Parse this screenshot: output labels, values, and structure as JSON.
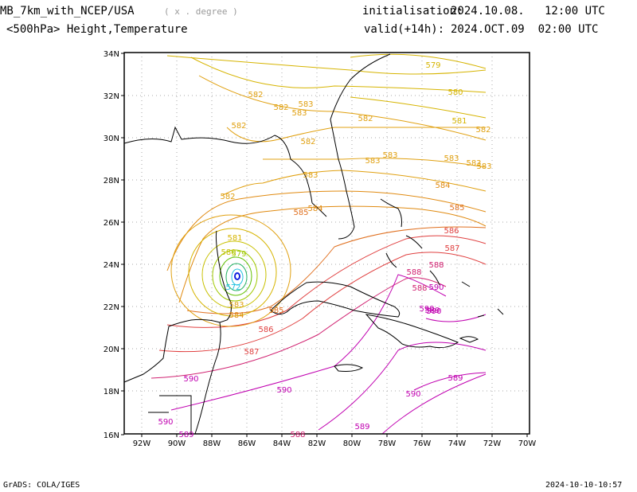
{
  "header": {
    "model": "MB_7km_with_NCEP/USA",
    "units": "( x . degree )",
    "field": "<500hPa> Height,Temperature",
    "init_label": "initialisation:",
    "init_value": "2024.10.08.   12:00 UTC",
    "valid_label": "valid(+14h):",
    "valid_value": "2024.OCT.09  02:00 UTC"
  },
  "footer": {
    "credit": "GrADS: COLA/IGES",
    "timestamp": "2024-10-10-10:57"
  },
  "map": {
    "lon_ticks": [
      "92W",
      "90W",
      "88W",
      "86W",
      "84W",
      "82W",
      "80W",
      "78W",
      "76W",
      "74W",
      "72W",
      "70W"
    ],
    "lat_ticks": [
      "34N",
      "32N",
      "30N",
      "28N",
      "26N",
      "24N",
      "22N",
      "20N",
      "18N",
      "16N"
    ],
    "contour_labels": [
      {
        "text": "579",
        "color": "#d6b400"
      },
      {
        "text": "580",
        "color": "#d6b400"
      },
      {
        "text": "581",
        "color": "#d6b400"
      },
      {
        "text": "582",
        "color": "#e0a010"
      },
      {
        "text": "582",
        "color": "#e0a010"
      },
      {
        "text": "583",
        "color": "#e0a010"
      },
      {
        "text": "583",
        "color": "#e0a010"
      },
      {
        "text": "582",
        "color": "#e0a010"
      },
      {
        "text": "582",
        "color": "#e0a010"
      },
      {
        "text": "582",
        "color": "#e0a010"
      },
      {
        "text": "582",
        "color": "#e0a010"
      },
      {
        "text": "583",
        "color": "#e0a010"
      },
      {
        "text": "583",
        "color": "#e0a010"
      },
      {
        "text": "583",
        "color": "#e0a010"
      },
      {
        "text": "583",
        "color": "#e0a010"
      },
      {
        "text": "583",
        "color": "#e0a010"
      },
      {
        "text": "583",
        "color": "#e0a010"
      },
      {
        "text": "584",
        "color": "#e08a10"
      },
      {
        "text": "584",
        "color": "#e08a10"
      },
      {
        "text": "585",
        "color": "#e07020"
      },
      {
        "text": "582",
        "color": "#e0a010"
      },
      {
        "text": "581",
        "color": "#d6b400"
      },
      {
        "text": "580",
        "color": "#c8c000"
      },
      {
        "text": "579",
        "color": "#a0c800"
      },
      {
        "text": "572",
        "color": "#20c0e0"
      },
      {
        "text": "583",
        "color": "#e0a010"
      },
      {
        "text": "584",
        "color": "#e08a10"
      },
      {
        "text": "585",
        "color": "#e07020"
      },
      {
        "text": "586",
        "color": "#e04040"
      },
      {
        "text": "587",
        "color": "#e04040"
      },
      {
        "text": "586",
        "color": "#e04040"
      },
      {
        "text": "587",
        "color": "#e04040"
      },
      {
        "text": "588",
        "color": "#d02070"
      },
      {
        "text": "588",
        "color": "#d02070"
      },
      {
        "text": "588",
        "color": "#d02070"
      },
      {
        "text": "590",
        "color": "#c000b0"
      },
      {
        "text": "589",
        "color": "#c000b0"
      },
      {
        "text": "590",
        "color": "#c000b0"
      },
      {
        "text": "589",
        "color": "#c000b0"
      },
      {
        "text": "588",
        "color": "#d02070"
      },
      {
        "text": "589",
        "color": "#c000b0"
      },
      {
        "text": "590",
        "color": "#c000b0"
      },
      {
        "text": "590",
        "color": "#c000b0"
      },
      {
        "text": "590",
        "color": "#c000b0"
      },
      {
        "text": "589",
        "color": "#c000b0"
      },
      {
        "text": "590",
        "color": "#c000b0"
      },
      {
        "text": "590",
        "color": "#c000b0"
      },
      {
        "text": "585",
        "color": "#e07020"
      }
    ]
  }
}
